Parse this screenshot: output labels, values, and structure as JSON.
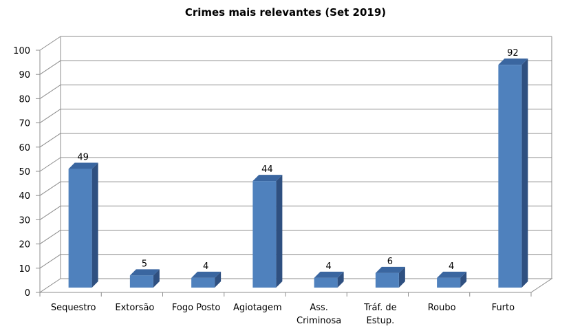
{
  "chart_data": {
    "type": "bar",
    "title": "Crimes mais relevantes (Set 2019)",
    "categories": [
      [
        "Sequestro"
      ],
      [
        "Extorsão"
      ],
      [
        "Fogo Posto"
      ],
      [
        "Agiotagem"
      ],
      [
        "Ass.",
        "Criminosa"
      ],
      [
        "Tráf. de",
        "Estup."
      ],
      [
        "Roubo"
      ],
      [
        "Furto"
      ]
    ],
    "values": [
      49,
      5,
      4,
      44,
      4,
      6,
      4,
      92
    ],
    "ylim": [
      0,
      100
    ],
    "yticks": [
      0,
      10,
      20,
      30,
      40,
      50,
      60,
      70,
      80,
      90,
      100
    ],
    "grid": true,
    "legend": "none",
    "colors": {
      "bar_front": "#4F81BD",
      "bar_side": "#2F5080",
      "bar_top": "#3A66A0",
      "grid": "#8C8C8C"
    }
  }
}
